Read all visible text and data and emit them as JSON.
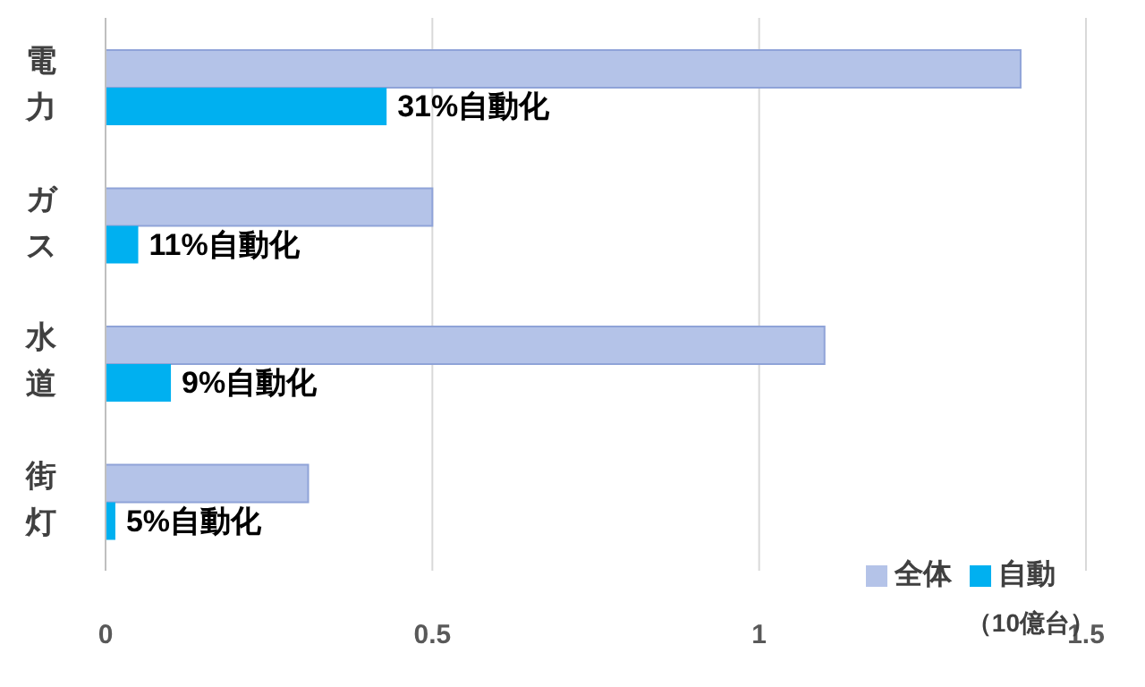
{
  "chart_data": {
    "type": "bar",
    "orientation": "horizontal",
    "categories": [
      "電力",
      "ガス",
      "水道",
      "街灯"
    ],
    "series": [
      {
        "name": "全体",
        "color": "#b4c3e8",
        "values": [
          1.4,
          0.5,
          1.1,
          0.31
        ]
      },
      {
        "name": "自動",
        "color": "#00b0f0",
        "values": [
          0.43,
          0.05,
          0.1,
          0.015
        ]
      }
    ],
    "xlim": [
      0,
      1.5
    ],
    "xticks": [
      0,
      0.5,
      1,
      1.5
    ],
    "grid": "x",
    "legend": "bottom right",
    "annotations": [
      {
        "text": "31%自動化",
        "x": 0.43,
        "y": "電力"
      },
      {
        "text": "11%自動化",
        "x": 0.05,
        "y": "ガス"
      },
      {
        "text": "9%自動化",
        "x": 0.1,
        "y": "水道"
      },
      {
        "text": "5%自動化",
        "x": 0.015,
        "y": "街灯"
      },
      "（10億台）"
    ]
  }
}
